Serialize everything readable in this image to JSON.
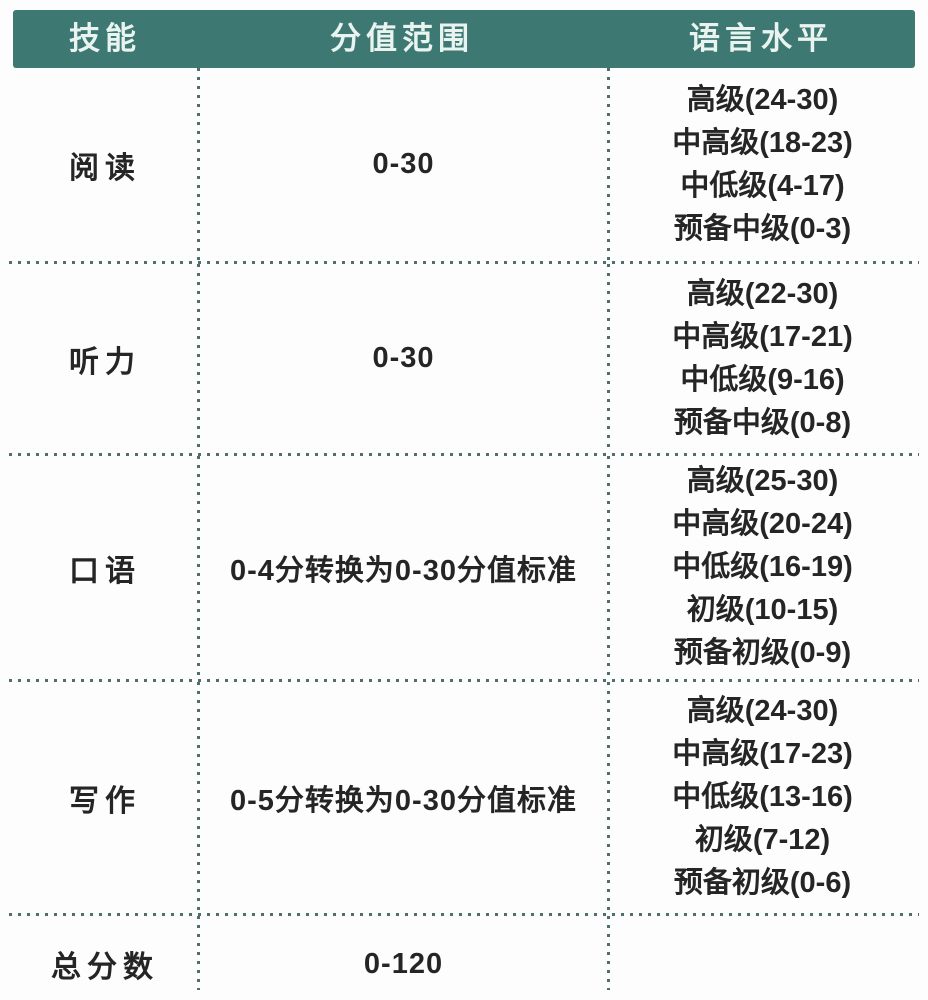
{
  "table": {
    "headers": [
      {
        "label": "技能"
      },
      {
        "label": "分值范围"
      },
      {
        "label": "语言水平"
      }
    ],
    "rows": [
      {
        "skill": "阅读",
        "range": "0-30",
        "levels": [
          "高级(24-30)",
          "中高级(18-23)",
          "中低级(4-17)",
          "预备中级(0-3)"
        ]
      },
      {
        "skill": "听力",
        "range": "0-30",
        "levels": [
          "高级(22-30)",
          "中高级(17-21)",
          "中低级(9-16)",
          "预备中级(0-8)"
        ]
      },
      {
        "skill": "口语",
        "range": "0-4分转换为0-30分值标准",
        "levels": [
          "高级(25-30)",
          "中高级(20-24)",
          "中低级(16-19)",
          "初级(10-15)",
          "预备初级(0-9)"
        ]
      },
      {
        "skill": "写作",
        "range": "0-5分转换为0-30分值标准",
        "levels": [
          "高级(24-30)",
          "中高级(17-23)",
          "中低级(13-16)",
          "初级(7-12)",
          "预备初级(0-6)"
        ]
      },
      {
        "skill": "总分数",
        "range": "0-120",
        "levels": []
      }
    ],
    "colors": {
      "header_bg": "#3d7872",
      "header_text": "#e9f4f1",
      "body_text": "#252525",
      "divider": "#4f6f6d",
      "background": "#fdfdfd"
    }
  }
}
